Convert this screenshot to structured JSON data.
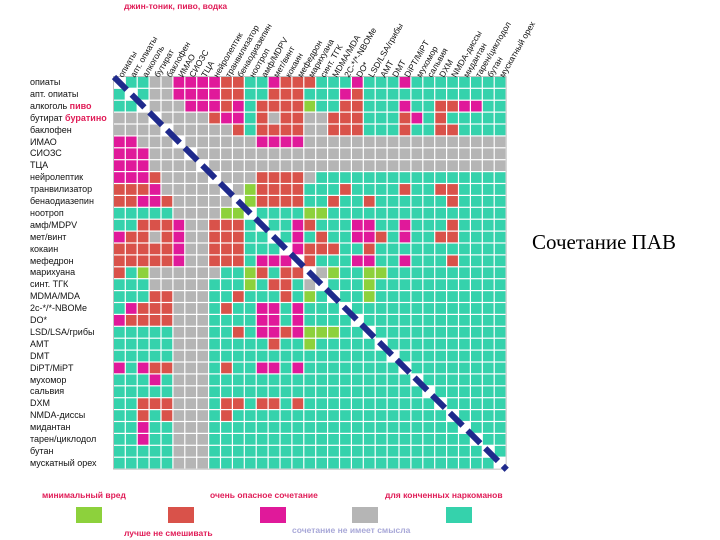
{
  "slide": {
    "caption": "Сочетание ПАВ"
  },
  "chart_data": {
    "type": "heatmap",
    "title": "",
    "mix_note": "джин-тоник, пиво, водка",
    "categories": [
      "опиаты",
      "апт. опиаты",
      "алкоголь",
      "бутират",
      "баклофен",
      "ИМАО",
      "СИОЗС",
      "ТЦА",
      "нейролептик",
      "транвилизатор",
      "бенаодиазепин",
      "ноотроп",
      "амф/MDPV",
      "мет/винт",
      "кокаин",
      "мефедрон",
      "марихуана",
      "синт. ТГК",
      "MDMA/MDA",
      "2с-*/*-NBOMe",
      "DO*",
      "LSD/LSA/грибы",
      "AMT",
      "DMT",
      "DiPT/MiPT",
      "мухомор",
      "сальвия",
      "DXM",
      "NMDA-диссы",
      "мидантан",
      "тарен/циклодол",
      "бутан",
      "мускатный орех"
    ],
    "column_labels": [
      "опиаты",
      "апт. опиаты",
      "алкоголь",
      "бутират",
      "баклофен",
      "ИМАО",
      "СИОЗС",
      "ТЦА",
      "нейролептик",
      "транвилизатор",
      "бенаодиазепин",
      "ноотроп",
      "амф/MDPV",
      "мет/винт",
      "кокаин",
      "мефедрон",
      "марихуана",
      "синт. ТГК",
      "MDMA/MDA",
      "2C-*/*-NBOMe",
      "DO*",
      "LSD/LSA/грибы",
      "AMT",
      "DMT",
      "DiPT/MiPT",
      "мухомор",
      "сальвия",
      "DXM",
      "NMDA-диссы",
      "мидантан",
      "тарен/циклодол",
      "бутан",
      "мускатный орех"
    ],
    "row_label_notes": [
      {
        "row": 2,
        "text": "пиво"
      },
      {
        "row": 3,
        "text": "буратино"
      }
    ],
    "legend": [
      {
        "key": "G",
        "label": "минимальный вред",
        "color": "#8dd13c"
      },
      {
        "key": "R",
        "label": "лучше не смешивать",
        "color": "#d9524a"
      },
      {
        "key": "M",
        "label": "очень опасное сочетание",
        "color": "#e0199a"
      },
      {
        "key": "S",
        "label": "сочетание не имеет смысла",
        "color": "#b5b5b5"
      },
      {
        "key": "T",
        "label": "для конченных наркоманов",
        "color": "#35d2ac"
      }
    ],
    "matrix": [
      "XTTSSMMMMRRTTMRRRTTTMTTTMTTTTTTTT",
      "TXTSSMMMMRRTTRRRTTTMRTTTTTTTTTTTT",
      "TTXSSSMMMRMTRRRRGTTRRTTTMTTRRMMTT",
      "SSSXSSSSRMMTRSRRSSRRRTTTRMTRTTTTT",
      "SSSSXSSSSSRTRRRRSSRRRTTTRTTRRTTTT",
      "MMSSSXSSSSSSMMMMSSSSSSSSSSSSSSSSS",
      "MMMSSSXSSSSSSSSSSSSSSSSSSSSSSSSSS",
      "MMMSSSSXSSSSSSSSSSSSSSSSSSSSSSSSS",
      "MMMRSSSSXSSSRRRRSTTTTTTTTTTTTTTTT",
      "RRRMSSSSSXSGRRRRTTTRTTTTRTTRRTTTT",
      "RRMMRSSSSSXGRRRRTTRTTRTTTTTTRTTTT",
      "TTTTTSSSSGGXTTTTGGTTTTTTTTTTTTTTT",
      "TTRRRMSSRRRTXTTMRTTTMMTTMTTTRTTTT",
      "MRRSRMSSRRRTTXTMTRTTMMRTMTTRRTTTT",
      "RRRRRMSSRRRTTTXMRRRTTRTTTTTTTTTTT",
      "RRRRRMSSRRRTMMMXRTTTMMTTMTTTRTTTT",
      "RTGSSSSSSTTGRTRRXSGTTGGTTTTTTTTTT",
      "TTTSSSSSTTTGTRRTSXTTTGTTTTTTTTTTT",
      "TTTRRSSSTTRTTTRTGTXTTGTTTTTTTTTTT",
      "TMRRRSSSTRTTMMTMTTTXTTTTTTTTTTTTT",
      "MRRRRSSSTTTTMMTMTTTTXTTTTTTTTTTTT",
      "TTTTTSSSTTRTMMRMGGGTTXTTTTTTTTTTT",
      "TTTTTSSSTTTTTRTTGTTTTTXTTTTTTTTTT",
      "TTTTTSSSTTTTTTTTTTTTTTTXTTTTTTTTT",
      "MTMRRSSSTRTTMMTMTTTTTTTTXTTTTTTTT",
      "TTTMTSSSTTTTTTTTTTTTTTTTTXTTTTTTT",
      "TTTTTSSSTTTTTTTTTTTTTTTTTTXTTTTTT",
      "TTRRRSSSTRRTRRTRTTTTTTTTTTTXTTTTT",
      "TTRTRSSSTRTTTTTTTTTTTTTTTTTTXTTTT",
      "TTMTTSSSTTTTTTTTTTTTTTTTTTTTTXTTT",
      "TTMTTSSSTTTTTTTTTTTTTTTTTTTTTTXTT",
      "TTTTTSSSTTTTTTTTTTTTTTTTTTTTTTTXT",
      "TTTTTSSSTTTTTTTTTTTTTTTTTTTTTTTTX"
    ],
    "diagonal": "self-combination (no value)"
  }
}
